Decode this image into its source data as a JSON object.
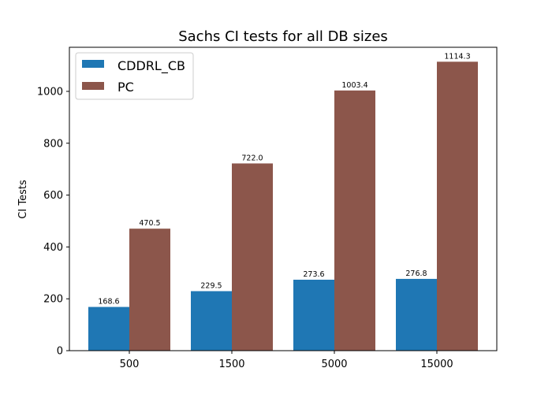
{
  "chart_data": {
    "type": "bar",
    "title": "Sachs CI tests for all DB sizes",
    "xlabel": "",
    "ylabel": "CI Tests",
    "categories": [
      "500",
      "1500",
      "5000",
      "15000"
    ],
    "series": [
      {
        "name": "CDDRL_CB",
        "color": "#1f77b4",
        "values": [
          168.6,
          229.5,
          273.6,
          276.8
        ]
      },
      {
        "name": "PC",
        "color": "#8c564b",
        "values": [
          470.5,
          722.0,
          1003.4,
          1114.3
        ]
      }
    ],
    "ylim": [
      0,
      1170
    ],
    "yticks": [
      0,
      200,
      400,
      600,
      800,
      1000
    ],
    "grid": false,
    "legend_position": "top-left"
  }
}
